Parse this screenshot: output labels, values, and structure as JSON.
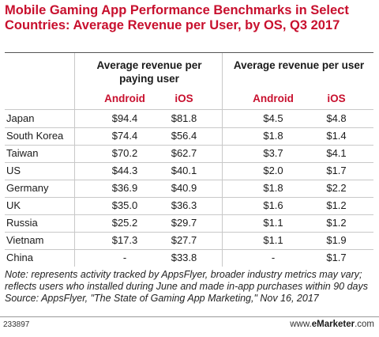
{
  "chart_data": {
    "type": "table",
    "title": "Mobile Gaming App Performance Benchmarks in Select Countries: Average Revenue per User, by OS, Q3 2017",
    "column_groups": [
      {
        "label": "Average revenue per paying user",
        "columns": [
          "Android",
          "iOS"
        ]
      },
      {
        "label": "Average revenue per user",
        "columns": [
          "Android",
          "iOS"
        ]
      }
    ],
    "rows": [
      {
        "country": "Japan",
        "arppu_android": "$94.4",
        "arppu_ios": "$81.8",
        "arpu_android": "$4.5",
        "arpu_ios": "$4.8"
      },
      {
        "country": "South Korea",
        "arppu_android": "$74.4",
        "arppu_ios": "$56.4",
        "arpu_android": "$1.8",
        "arpu_ios": "$1.4"
      },
      {
        "country": "Taiwan",
        "arppu_android": "$70.2",
        "arppu_ios": "$62.7",
        "arpu_android": "$3.7",
        "arpu_ios": "$4.1"
      },
      {
        "country": "US",
        "arppu_android": "$44.3",
        "arppu_ios": "$40.1",
        "arpu_android": "$2.0",
        "arpu_ios": "$1.7"
      },
      {
        "country": "Germany",
        "arppu_android": "$36.9",
        "arppu_ios": "$40.9",
        "arpu_android": "$1.8",
        "arpu_ios": "$2.2"
      },
      {
        "country": "UK",
        "arppu_android": "$35.0",
        "arppu_ios": "$36.3",
        "arpu_android": "$1.6",
        "arpu_ios": "$1.2"
      },
      {
        "country": "Russia",
        "arppu_android": "$25.2",
        "arppu_ios": "$29.7",
        "arpu_android": "$1.1",
        "arpu_ios": "$1.2"
      },
      {
        "country": "Vietnam",
        "arppu_android": "$17.3",
        "arppu_ios": "$27.7",
        "arpu_android": "$1.1",
        "arpu_ios": "$1.9"
      },
      {
        "country": "China",
        "arppu_android": "-",
        "arppu_ios": "$33.8",
        "arpu_android": "-",
        "arpu_ios": "$1.7"
      }
    ],
    "note": "Note: represents activity tracked by AppsFlyer, broader industry metrics may vary; reflects users who installed during June and made in-app purchases within 90 days",
    "source": "Source: AppsFlyer, \"The State of Gaming App Marketing,\" Nov 16, 2017"
  },
  "footer": {
    "chart_id": "233897",
    "brand_prefix": "www.",
    "brand_name": "eMarketer",
    "brand_suffix": ".com"
  },
  "colors": {
    "title": "#c8102e",
    "os_header": "#c8102e"
  }
}
